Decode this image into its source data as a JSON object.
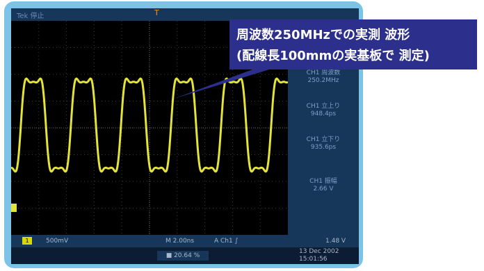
{
  "callout": {
    "line1": "周波数250MHzでの実測 波形",
    "line2": "(配線長100mmの実基板で 測定)"
  },
  "scope": {
    "mode_label": "Tek 停止",
    "trigger_marker": "T",
    "side_panel": [
      {
        "label": "CH1 周波数",
        "value": "250.2MHz"
      },
      {
        "label": "CH1 立上り",
        "value": "948.4ps"
      },
      {
        "label": "CH1 立下り",
        "value": "935.6ps"
      },
      {
        "label": "CH1 振幅",
        "value": "2.66 V"
      }
    ],
    "channel_badge": "1",
    "volts_div": "500mV",
    "timebase": "M 2.00ns",
    "trigger_info": "A  Ch1  ∫",
    "trigger_level": "1.48 V",
    "percent": "■ 20.64 %",
    "date": "13 Dec 2002",
    "time": "15:01:56",
    "colors": {
      "trace": "#e3e33a",
      "screen": "#000000",
      "panel": "#16375a",
      "frame": "#7cc3e8",
      "callout": "#2c2f8b"
    }
  }
}
